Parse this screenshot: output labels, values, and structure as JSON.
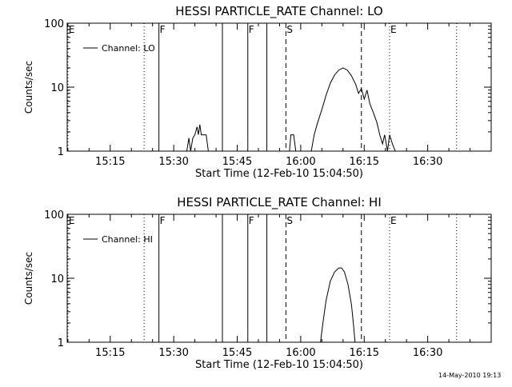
{
  "footer": {
    "timestamp": "14-May-2010 19:13"
  },
  "chart_data": [
    {
      "type": "line",
      "title": "HESSI PARTICLE_RATE Channel: LO",
      "xlabel": "Start Time (12-Feb-10 15:04:50)",
      "ylabel": "Counts/sec",
      "yscale": "log",
      "ylim": [
        1,
        100
      ],
      "xlim": [
        "15:04:50",
        "16:45:00"
      ],
      "x_ticks": [
        "15:15",
        "15:30",
        "15:45",
        "16:00",
        "16:15",
        "16:30"
      ],
      "y_ticks": [
        "1",
        "10",
        "100"
      ],
      "grid": false,
      "legend": {
        "position": "top-left",
        "entries": [
          "Channel: LO"
        ]
      },
      "series": [
        {
          "name": "Channel: LO",
          "color": "#000000",
          "points": [
            [
              "15:33:05",
              1.0
            ],
            [
              "15:33:35",
              1.6
            ],
            [
              "15:34:00",
              1.0
            ],
            [
              "15:34:30",
              1.6
            ],
            [
              "15:35:00",
              1.8
            ],
            [
              "15:35:30",
              2.4
            ],
            [
              "15:35:50",
              1.8
            ],
            [
              "15:36:10",
              2.6
            ],
            [
              "15:36:30",
              1.8
            ],
            [
              "15:37:00",
              1.8
            ],
            [
              "15:37:40",
              1.8
            ],
            [
              "15:38:10",
              1.0
            ],
            [
              "15:57:20",
              1.0
            ],
            [
              "15:57:40",
              1.8
            ],
            [
              "15:58:20",
              1.8
            ],
            [
              "15:58:50",
              1.0
            ],
            [
              "16:02:30",
              1.0
            ],
            [
              "16:03:10",
              1.8
            ],
            [
              "16:04:00",
              2.8
            ],
            [
              "16:05:00",
              4.5
            ],
            [
              "16:06:00",
              7.5
            ],
            [
              "16:07:00",
              11.5
            ],
            [
              "16:08:00",
              15.5
            ],
            [
              "16:09:00",
              18.5
            ],
            [
              "16:10:00",
              20.0
            ],
            [
              "16:11:00",
              18.5
            ],
            [
              "16:12:00",
              15.0
            ],
            [
              "16:13:00",
              11.0
            ],
            [
              "16:13:40",
              8.0
            ],
            [
              "16:14:20",
              9.5
            ],
            [
              "16:15:00",
              6.5
            ],
            [
              "16:15:40",
              9.0
            ],
            [
              "16:16:20",
              5.5
            ],
            [
              "16:17:10",
              4.0
            ],
            [
              "16:18:00",
              2.8
            ],
            [
              "16:18:40",
              1.8
            ],
            [
              "16:19:20",
              1.3
            ],
            [
              "16:19:50",
              1.8
            ],
            [
              "16:20:30",
              1.0
            ],
            [
              "16:21:00",
              1.8
            ],
            [
              "16:21:40",
              1.3
            ],
            [
              "16:22:20",
              1.0
            ]
          ]
        }
      ],
      "markers": [
        {
          "time": "15:05:00",
          "style": "dotted",
          "label": "E"
        },
        {
          "time": "15:23:00",
          "style": "dotted",
          "label": ""
        },
        {
          "time": "15:26:30",
          "style": "solid",
          "label": "F"
        },
        {
          "time": "15:41:30",
          "style": "solid",
          "label": ""
        },
        {
          "time": "15:47:30",
          "style": "solid",
          "label": "F"
        },
        {
          "time": "15:52:00",
          "style": "solid",
          "label": ""
        },
        {
          "time": "15:56:30",
          "style": "dashed",
          "label": "S"
        },
        {
          "time": "16:14:20",
          "style": "dashed",
          "label": ""
        },
        {
          "time": "16:21:00",
          "style": "dotted",
          "label": "E"
        },
        {
          "time": "16:36:50",
          "style": "dotted",
          "label": ""
        }
      ]
    },
    {
      "type": "line",
      "title": "HESSI PARTICLE_RATE Channel: HI",
      "xlabel": "Start Time (12-Feb-10 15:04:50)",
      "ylabel": "Counts/sec",
      "yscale": "log",
      "ylim": [
        1,
        100
      ],
      "xlim": [
        "15:04:50",
        "16:45:00"
      ],
      "x_ticks": [
        "15:15",
        "15:30",
        "15:45",
        "16:00",
        "16:15",
        "16:30"
      ],
      "y_ticks": [
        "1",
        "10",
        "100"
      ],
      "grid": false,
      "legend": {
        "position": "top-left",
        "entries": [
          "Channel: HI"
        ]
      },
      "series": [
        {
          "name": "Channel: HI",
          "color": "#000000",
          "points": [
            [
              "16:04:40",
              1.0
            ],
            [
              "16:05:20",
              2.2
            ],
            [
              "16:06:00",
              4.5
            ],
            [
              "16:07:00",
              9.0
            ],
            [
              "16:08:00",
              12.5
            ],
            [
              "16:09:00",
              14.5
            ],
            [
              "16:09:40",
              14.5
            ],
            [
              "16:10:20",
              12.5
            ],
            [
              "16:11:10",
              8.0
            ],
            [
              "16:12:00",
              3.8
            ],
            [
              "16:12:30",
              1.8
            ],
            [
              "16:12:50",
              1.0
            ]
          ]
        }
      ],
      "markers": [
        {
          "time": "15:05:00",
          "style": "dotted",
          "label": "E"
        },
        {
          "time": "15:23:00",
          "style": "dotted",
          "label": ""
        },
        {
          "time": "15:26:30",
          "style": "solid",
          "label": "F"
        },
        {
          "time": "15:41:30",
          "style": "solid",
          "label": ""
        },
        {
          "time": "15:47:30",
          "style": "solid",
          "label": "F"
        },
        {
          "time": "15:52:00",
          "style": "solid",
          "label": ""
        },
        {
          "time": "15:56:30",
          "style": "dashed",
          "label": "S"
        },
        {
          "time": "16:14:20",
          "style": "dashed",
          "label": ""
        },
        {
          "time": "16:21:00",
          "style": "dotted",
          "label": "E"
        },
        {
          "time": "16:36:50",
          "style": "dotted",
          "label": ""
        }
      ]
    }
  ]
}
